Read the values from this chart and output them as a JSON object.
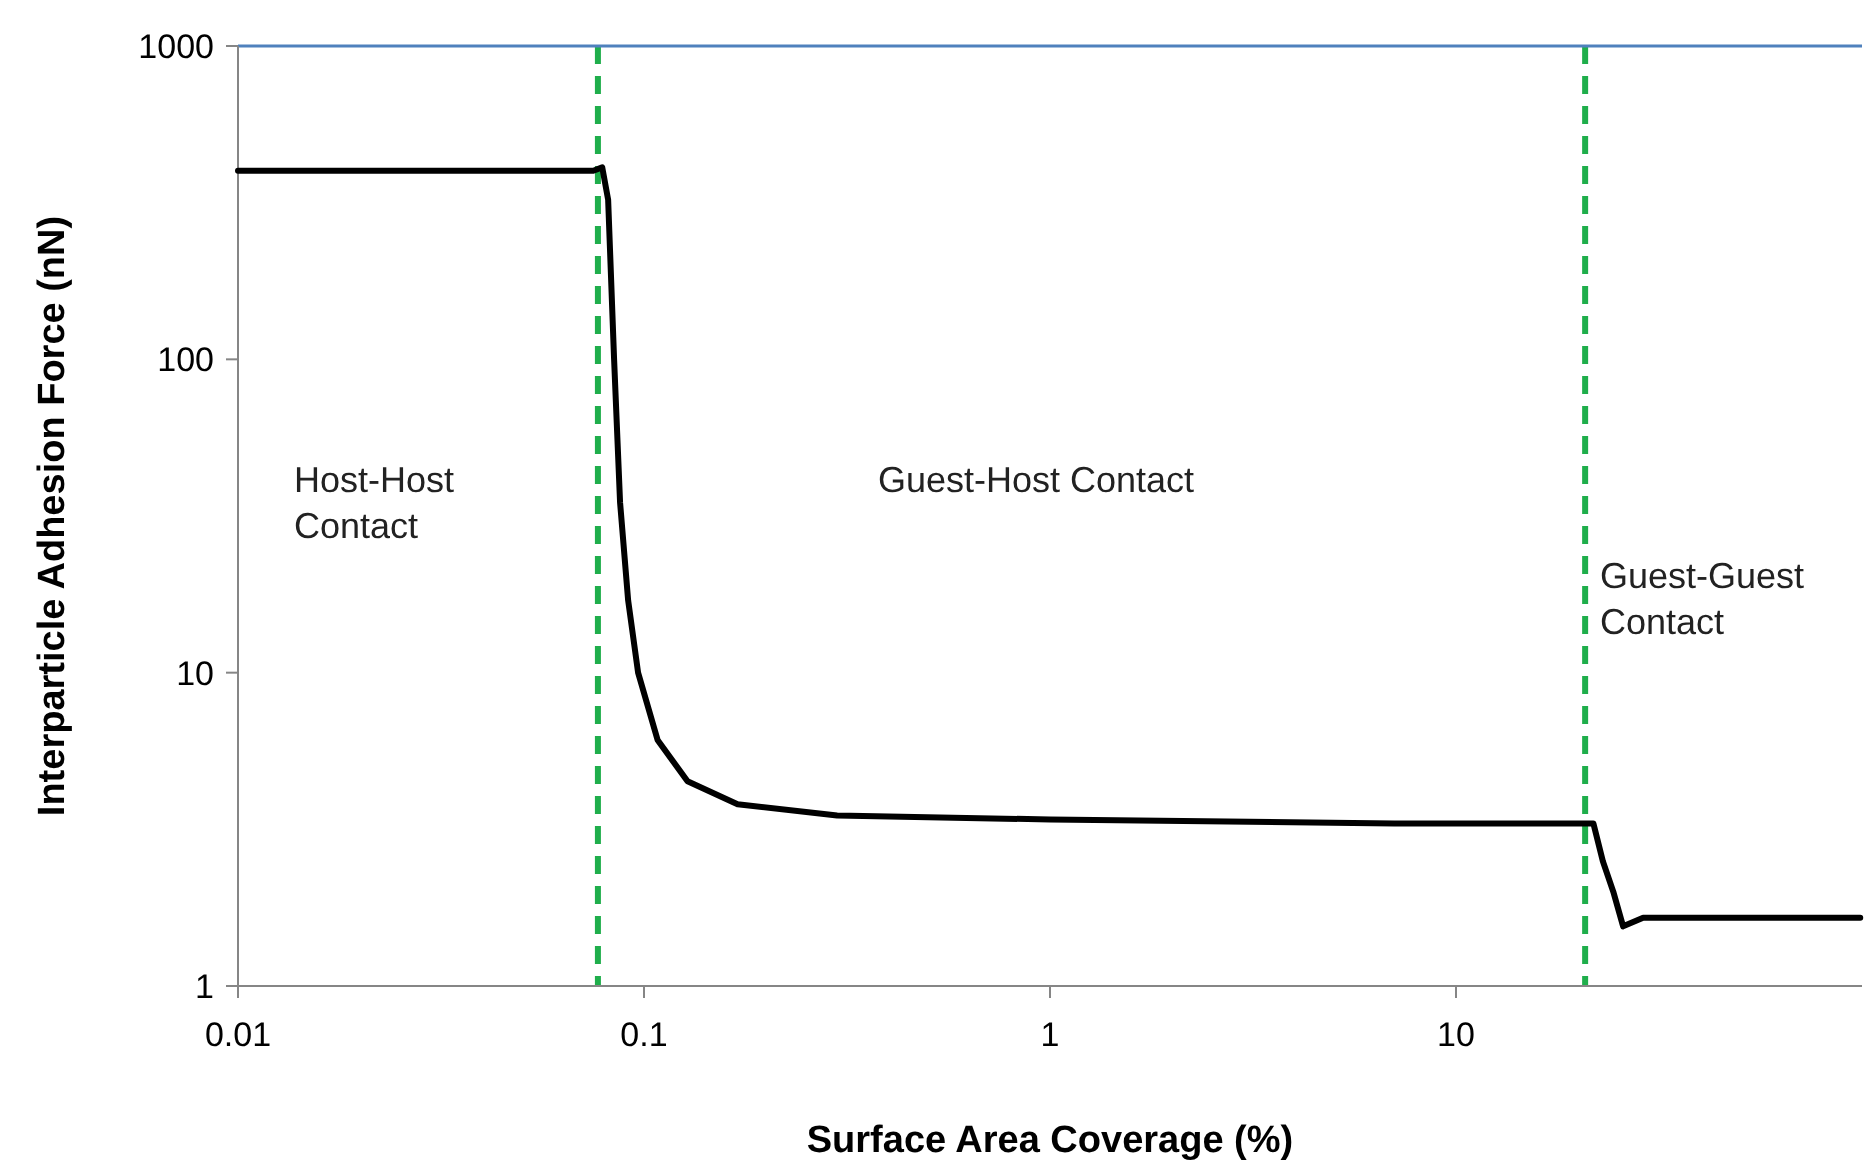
{
  "chart_data": {
    "type": "line",
    "xlabel": "Surface Area Coverage (%)",
    "ylabel": "Interparticle Adhesion Force (nN)",
    "log": "xy",
    "xlim": [
      0.01,
      100
    ],
    "ylim": [
      1,
      1000
    ],
    "xticks": [
      0.01,
      0.1,
      1,
      10
    ],
    "yticks": [
      1,
      10,
      100,
      1000
    ],
    "grid": false,
    "marker": "none",
    "line_style": "solid",
    "series": [
      {
        "color": "#000000",
        "x": [
          0.01,
          0.075,
          0.0789,
          0.0816,
          0.0844,
          0.0873,
          0.0914,
          0.0967,
          0.108,
          0.128,
          0.17,
          0.299,
          1.0,
          7.05,
          20.6,
          21.8,
          23.0,
          24.4,
          25.8,
          28.9,
          99
        ],
        "values": [
          400,
          400,
          410,
          323,
          100,
          35,
          17,
          10,
          6.1,
          4.5,
          3.8,
          3.5,
          3.4,
          3.3,
          3.3,
          3.3,
          2.5,
          2.0,
          1.55,
          1.65,
          1.65
        ]
      }
    ],
    "ref_lines": [
      {
        "axis": "x",
        "value": 0.077,
        "color": "#1fae4b",
        "line_style": "dashed"
      },
      {
        "axis": "x",
        "value": 20.8,
        "color": "#1fae4b",
        "line_style": "dashed"
      },
      {
        "axis": "y",
        "value": 1000,
        "color": "#4f81bd",
        "line_style": "solid"
      }
    ],
    "annotations": [
      "Host-Host\nContact",
      "Guest-Host Contact",
      "Guest-Guest\nContact"
    ]
  }
}
